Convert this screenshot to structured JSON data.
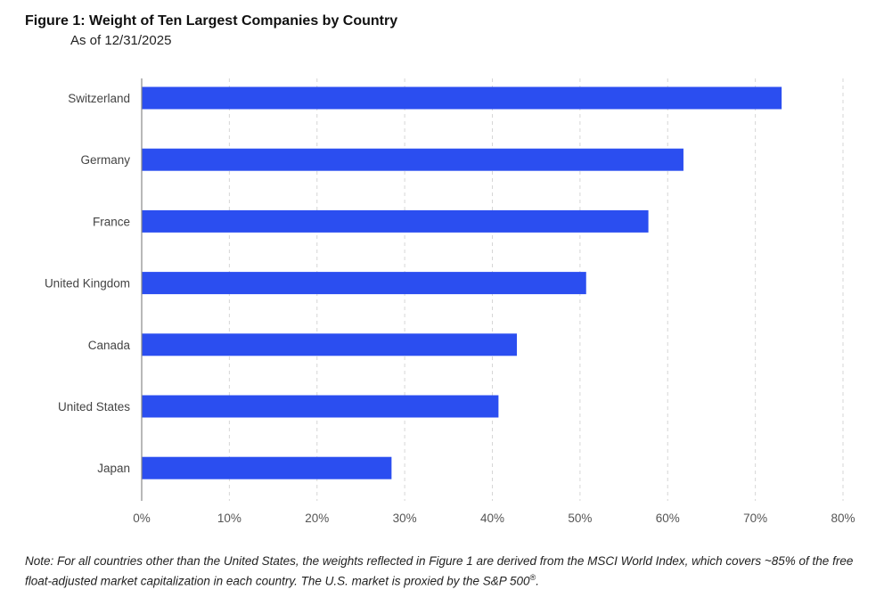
{
  "chart_data": {
    "type": "bar",
    "orientation": "horizontal",
    "title": "Figure 1: Weight of Ten Largest Companies by Country",
    "subtitle": "As of 12/31/2025",
    "categories": [
      "Switzerland",
      "Germany",
      "France",
      "United Kingdom",
      "Canada",
      "United States",
      "Japan"
    ],
    "values": [
      73,
      61.8,
      57.8,
      50.7,
      42.8,
      40.7,
      28.5
    ],
    "xlim": [
      0,
      80
    ],
    "x_ticks": [
      0,
      10,
      20,
      30,
      40,
      50,
      60,
      70,
      80
    ],
    "x_tick_labels": [
      "0%",
      "10%",
      "20%",
      "30%",
      "40%",
      "50%",
      "60%",
      "70%",
      "80%"
    ],
    "xlabel": "",
    "ylabel": "",
    "grid": "vertical dashed",
    "legend": "none",
    "bar_color": "#2b4ef0"
  },
  "note": {
    "text": "Note: For all countries other than the United States, the weights reflected in Figure 1 are derived from the MSCI World Index, which covers ~85% of the free float-adjusted market capitalization in each country. The U.S. market is proxied by the S&P 500",
    "superscript": "®",
    "end": "."
  }
}
